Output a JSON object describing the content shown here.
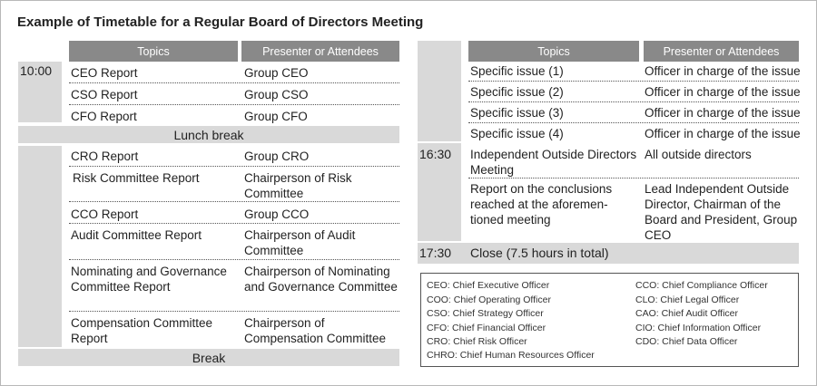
{
  "title": "Example of Timetable for a Regular Board of Directors Meeting",
  "headers": {
    "topics": "Topics",
    "presenter": "Presenter or Attendees"
  },
  "left": {
    "time1": "10:00",
    "block1": [
      {
        "topic": "CEO Report",
        "presenter": "Group CEO"
      },
      {
        "topic": "CSO Report",
        "presenter": "Group CSO"
      },
      {
        "topic": "CFO Report",
        "presenter": "Group CFO"
      }
    ],
    "lunch": "Lunch break",
    "block2": [
      {
        "topic": "CRO Report",
        "presenter": "Group CRO"
      },
      {
        "topic": "Risk Committee Report",
        "presenter": "Chairperson of Risk Committee"
      },
      {
        "topic": "CCO Report",
        "presenter": "Group CCO"
      },
      {
        "topic": "Audit Committee Report",
        "presenter": "Chairperson of Audit Committee"
      },
      {
        "topic": "Nominating and Governance Committee Report",
        "presenter": "Chairperson of Nominating and Governance Committee"
      },
      {
        "topic": "Compensation Committee Report",
        "presenter": "Chairperson of Compensation Committee"
      }
    ],
    "break": "Break"
  },
  "right": {
    "block1": [
      {
        "topic": "Specific issue (1)",
        "presenter": "Officer in charge of the issue"
      },
      {
        "topic": "Specific issue (2)",
        "presenter": "Officer in charge of the issue"
      },
      {
        "topic": "Specific issue (3)",
        "presenter": "Officer in charge of the issue"
      },
      {
        "topic": "Specific issue (4)",
        "presenter": "Officer in charge of the issue"
      }
    ],
    "time2": "16:30",
    "block2": [
      {
        "topic": "Independent Outside Directors Meeting",
        "presenter": "All outside directors"
      },
      {
        "topic": "Report on the conclusions reached at the aforemen-tioned meeting",
        "presenter": "Lead Independent Outside Director, Chairman of the Board and President, Group CEO"
      }
    ],
    "time3": "17:30",
    "close": "Close (7.5 hours in total)"
  },
  "legend": {
    "col1": [
      "CEO: Chief Executive Officer",
      "COO: Chief Operating Officer",
      "CSO: Chief Strategy Officer",
      "CFO: Chief Financial Officer",
      "CRO: Chief Risk Officer",
      "CHRO: Chief Human Resources Officer"
    ],
    "col2": [
      "CCO: Chief Compliance Officer",
      "CLO: Chief Legal Officer",
      "CAO: Chief Audit Officer",
      "CIO: Chief Information Officer",
      "CDO: Chief Data Officer"
    ]
  }
}
